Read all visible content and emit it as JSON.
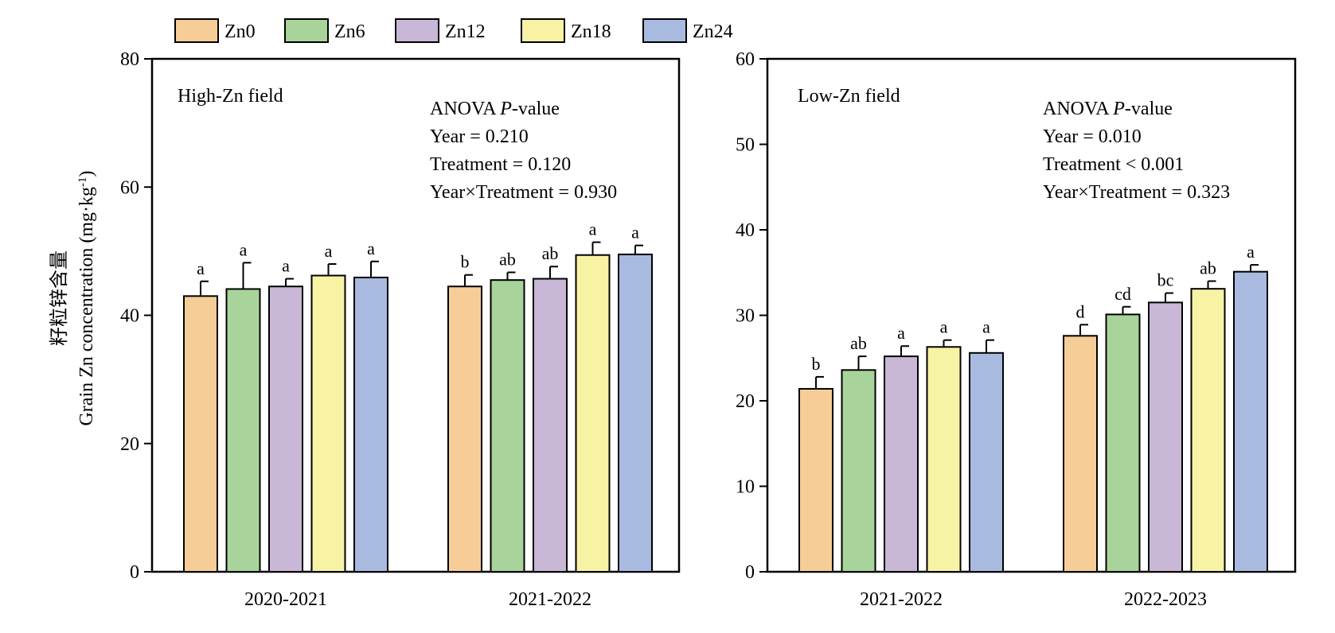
{
  "legend": {
    "items": [
      {
        "label": "Zn0",
        "color": "#F6CD97"
      },
      {
        "label": "Zn6",
        "color": "#A8D49B"
      },
      {
        "label": "Zn12",
        "color": "#C8B7D6"
      },
      {
        "label": "Zn18",
        "color": "#F7F2A4"
      },
      {
        "label": "Zn24",
        "color": "#A9BAE0"
      }
    ]
  },
  "ylabel_cn": "籽粒锌含量",
  "ylabel_en": "Grain Zn concentration (mg·kg",
  "ylabel_sup": "-1",
  "ylabel_close": ")",
  "chart_data": [
    {
      "type": "bar",
      "panel_title": "High-Zn field",
      "ylabel": "籽粒锌含量 Grain Zn concentration (mg·kg-1)",
      "ylim": [
        0,
        80
      ],
      "yticks": [
        0,
        20,
        40,
        60,
        80
      ],
      "categories": [
        "2020-2021",
        "2021-2022"
      ],
      "series": [
        {
          "name": "Zn0",
          "values": [
            43.0,
            44.5
          ],
          "errors": [
            2.3,
            1.8
          ],
          "letters": [
            "a",
            "b"
          ]
        },
        {
          "name": "Zn6",
          "values": [
            44.1,
            45.5
          ],
          "errors": [
            4.1,
            1.2
          ],
          "letters": [
            "a",
            "ab"
          ]
        },
        {
          "name": "Zn12",
          "values": [
            44.5,
            45.7
          ],
          "errors": [
            1.2,
            1.9
          ],
          "letters": [
            "a",
            "ab"
          ]
        },
        {
          "name": "Zn18",
          "values": [
            46.2,
            49.4
          ],
          "errors": [
            1.8,
            2.0
          ],
          "letters": [
            "a",
            "a"
          ]
        },
        {
          "name": "Zn24",
          "values": [
            45.9,
            49.5
          ],
          "errors": [
            2.5,
            1.4
          ],
          "letters": [
            "a",
            "a"
          ]
        }
      ],
      "anova": {
        "heading": "ANOVA",
        "heading_p": "P",
        "heading_rest": "-value",
        "lines": [
          "Year = 0.210",
          "Treatment = 0.120",
          "Year×Treatment = 0.930"
        ]
      }
    },
    {
      "type": "bar",
      "panel_title": "Low-Zn field",
      "ylabel": "",
      "ylim": [
        0,
        60
      ],
      "yticks": [
        0,
        10,
        20,
        30,
        40,
        50,
        60
      ],
      "categories": [
        "2021-2022",
        "2022-2023"
      ],
      "series": [
        {
          "name": "Zn0",
          "values": [
            21.4,
            27.6
          ],
          "errors": [
            1.4,
            1.3
          ],
          "letters": [
            "b",
            "d"
          ]
        },
        {
          "name": "Zn6",
          "values": [
            23.6,
            30.1
          ],
          "errors": [
            1.6,
            0.9
          ],
          "letters": [
            "ab",
            "cd"
          ]
        },
        {
          "name": "Zn12",
          "values": [
            25.2,
            31.5
          ],
          "errors": [
            1.2,
            1.1
          ],
          "letters": [
            "a",
            "bc"
          ]
        },
        {
          "name": "Zn18",
          "values": [
            26.3,
            33.1
          ],
          "errors": [
            0.8,
            0.9
          ],
          "letters": [
            "a",
            "ab"
          ]
        },
        {
          "name": "Zn24",
          "values": [
            25.6,
            35.1
          ],
          "errors": [
            1.5,
            0.8
          ],
          "letters": [
            "a",
            "a"
          ]
        }
      ],
      "anova": {
        "heading": "ANOVA",
        "heading_p": "P",
        "heading_rest": "-value",
        "lines": [
          "Year = 0.010",
          "Treatment < 0.001",
          "Year×Treatment = 0.323"
        ]
      }
    }
  ]
}
